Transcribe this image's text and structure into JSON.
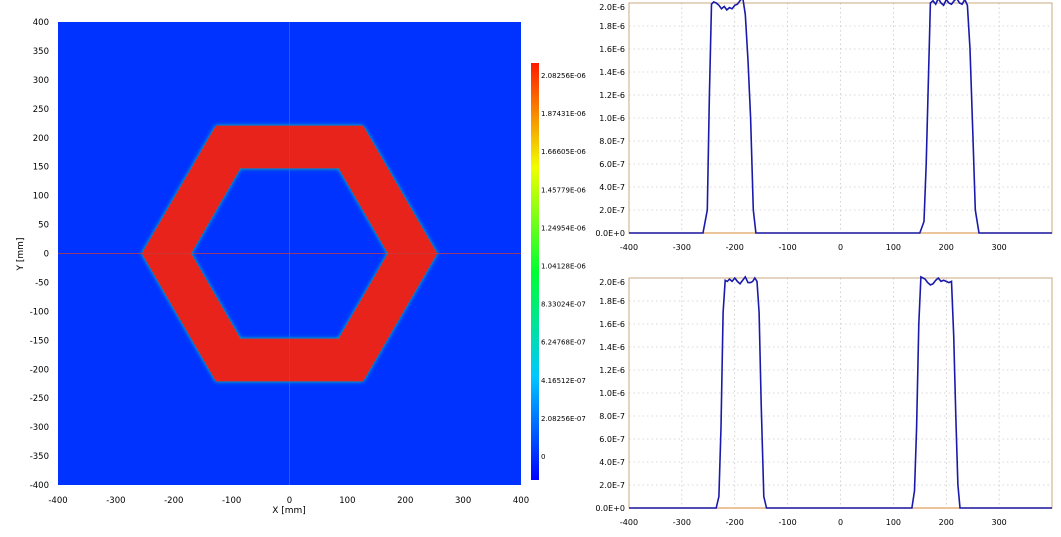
{
  "heatmap": {
    "chart_data": {
      "type": "heatmap",
      "xlabel": "X [mm]",
      "ylabel": "Y [mm]",
      "xlim": [
        -400,
        400
      ],
      "ylim": [
        -400,
        400
      ],
      "x_ticks": [
        -400,
        -300,
        -200,
        -100,
        0,
        100,
        200,
        300,
        400
      ],
      "y_ticks": [
        400,
        350,
        300,
        250,
        200,
        150,
        100,
        50,
        0,
        -50,
        -100,
        -150,
        -200,
        -250,
        -300,
        -350,
        -400
      ],
      "shape": "hexagonal ring",
      "outer_hexagon": [
        [
          -255,
          0
        ],
        [
          -127,
          221
        ],
        [
          127,
          221
        ],
        [
          255,
          0
        ],
        [
          127,
          -221
        ],
        [
          -127,
          -221
        ]
      ],
      "inner_hexagon": [
        [
          -170,
          0
        ],
        [
          -85,
          147
        ],
        [
          85,
          147
        ],
        [
          170,
          0
        ],
        [
          85,
          -147
        ],
        [
          -85,
          -147
        ]
      ],
      "ring_value": 2e-06,
      "background_value": 0,
      "crosshair": {
        "x": 0,
        "y": 0
      },
      "colorbar": {
        "labels": [
          "2.08256E-06",
          "1.87431E-06",
          "1.66605E-06",
          "1.45779E-06",
          "1.24954E-06",
          "1.04128E-06",
          "8.33024E-07",
          "6.24768E-07",
          "4.16512E-07",
          "2.08256E-07",
          "0"
        ],
        "min": 0,
        "max": 2.08256e-06
      },
      "colors": {
        "low": "#0033ff",
        "high": "#e8231b",
        "crosshair": "#c83c3c"
      }
    }
  },
  "profiles": [
    {
      "chart_data": {
        "type": "line",
        "xlim": [
          -400,
          400
        ],
        "ylim": [
          0,
          2e-06
        ],
        "x_ticks": [
          "-400",
          "-300",
          "-200",
          "-100",
          "0",
          "100",
          "200",
          "300"
        ],
        "x_tick_values": [
          -400,
          -300,
          -200,
          -100,
          0,
          100,
          200,
          300
        ],
        "y_ticks": [
          "2.0E-6",
          "1.8E-6",
          "1.6E-6",
          "1.4E-6",
          "1.2E-6",
          "1.0E-6",
          "8.0E-7",
          "6.0E-7",
          "4.0E-7",
          "2.0E-7",
          "0.0E+0"
        ],
        "y_tick_values": [
          2e-06,
          1.8e-06,
          1.6e-06,
          1.4e-06,
          1.2e-06,
          1e-06,
          8e-07,
          6e-07,
          4e-07,
          2e-07,
          0
        ],
        "series": [
          {
            "color": "#1a1aaa",
            "x": [
              -400,
              -260,
              -252,
              -248,
              -244,
              -240,
              -235,
              -230,
              -225,
              -220,
              -215,
              -210,
              -205,
              -200,
              -195,
              -190,
              -185,
              -180,
              -175,
              -170,
              -165,
              -160,
              -150,
              150,
              158,
              162,
              166,
              170,
              175,
              180,
              185,
              190,
              195,
              200,
              205,
              210,
              215,
              220,
              225,
              230,
              235,
              240,
              245,
              250,
              255,
              262,
              400
            ],
            "y": [
              0,
              0,
              2e-07,
              1.2e-06,
              1.99e-06,
              2.01e-06,
              2e-06,
              1.98e-06,
              1.95e-06,
              1.97e-06,
              1.94e-06,
              1.96e-06,
              1.95e-06,
              1.98e-06,
              1.99e-06,
              2.02e-06,
              2.05e-06,
              1.9e-06,
              1.5e-06,
              1e-06,
              2e-07,
              0,
              0,
              0,
              1e-07,
              6e-07,
              1.3e-06,
              2e-06,
              2.02e-06,
              1.99e-06,
              2.04e-06,
              2e-06,
              1.98e-06,
              2.03e-06,
              2e-06,
              1.99e-06,
              2.02e-06,
              2.04e-06,
              2e-06,
              1.99e-06,
              2.03e-06,
              1.98e-06,
              1.6e-06,
              9e-07,
              2e-07,
              0,
              0
            ]
          }
        ]
      }
    },
    {
      "chart_data": {
        "type": "line",
        "xlim": [
          -400,
          400
        ],
        "ylim": [
          0,
          2e-06
        ],
        "x_ticks": [
          "-400",
          "-300",
          "-200",
          "-100",
          "0",
          "100",
          "200",
          "300"
        ],
        "x_tick_values": [
          -400,
          -300,
          -200,
          -100,
          0,
          100,
          200,
          300
        ],
        "y_ticks": [
          "2.0E-6",
          "1.8E-6",
          "1.6E-6",
          "1.4E-6",
          "1.2E-6",
          "1.0E-6",
          "8.0E-7",
          "6.0E-7",
          "4.0E-7",
          "2.0E-7",
          "0.0E+0"
        ],
        "y_tick_values": [
          2e-06,
          1.8e-06,
          1.6e-06,
          1.4e-06,
          1.2e-06,
          1e-06,
          8e-07,
          6e-07,
          4e-07,
          2e-07,
          0
        ],
        "series": [
          {
            "color": "#1a1aaa",
            "x": [
              -400,
              -235,
              -230,
              -226,
              -222,
              -218,
              -214,
              -210,
              -205,
              -200,
              -195,
              -190,
              -185,
              -180,
              -175,
              -170,
              -166,
              -162,
              -158,
              -154,
              -150,
              -145,
              -140,
              -130,
              135,
              140,
              144,
              148,
              152,
              156,
              160,
              165,
              170,
              175,
              180,
              185,
              190,
              195,
              200,
              205,
              210,
              214,
              218,
              222,
              226,
              230,
              400
            ],
            "y": [
              0,
              0,
              1e-07,
              7e-07,
              1.7e-06,
              1.98e-06,
              1.97e-06,
              1.99e-06,
              1.97e-06,
              2e-06,
              1.97e-06,
              1.95e-06,
              1.98e-06,
              2.01e-06,
              1.96e-06,
              1.96e-06,
              1.97e-06,
              2e-06,
              1.97e-06,
              1.7e-06,
              9e-07,
              1e-07,
              0,
              0,
              0,
              1.5e-07,
              7e-07,
              1.6e-06,
              2.01e-06,
              2e-06,
              1.99e-06,
              1.96e-06,
              1.94e-06,
              1.95e-06,
              1.98e-06,
              2e-06,
              1.97e-06,
              1.98e-06,
              1.97e-06,
              1.96e-06,
              1.97e-06,
              1.5e-06,
              8e-07,
              2e-07,
              0,
              0,
              0
            ]
          }
        ]
      }
    }
  ]
}
